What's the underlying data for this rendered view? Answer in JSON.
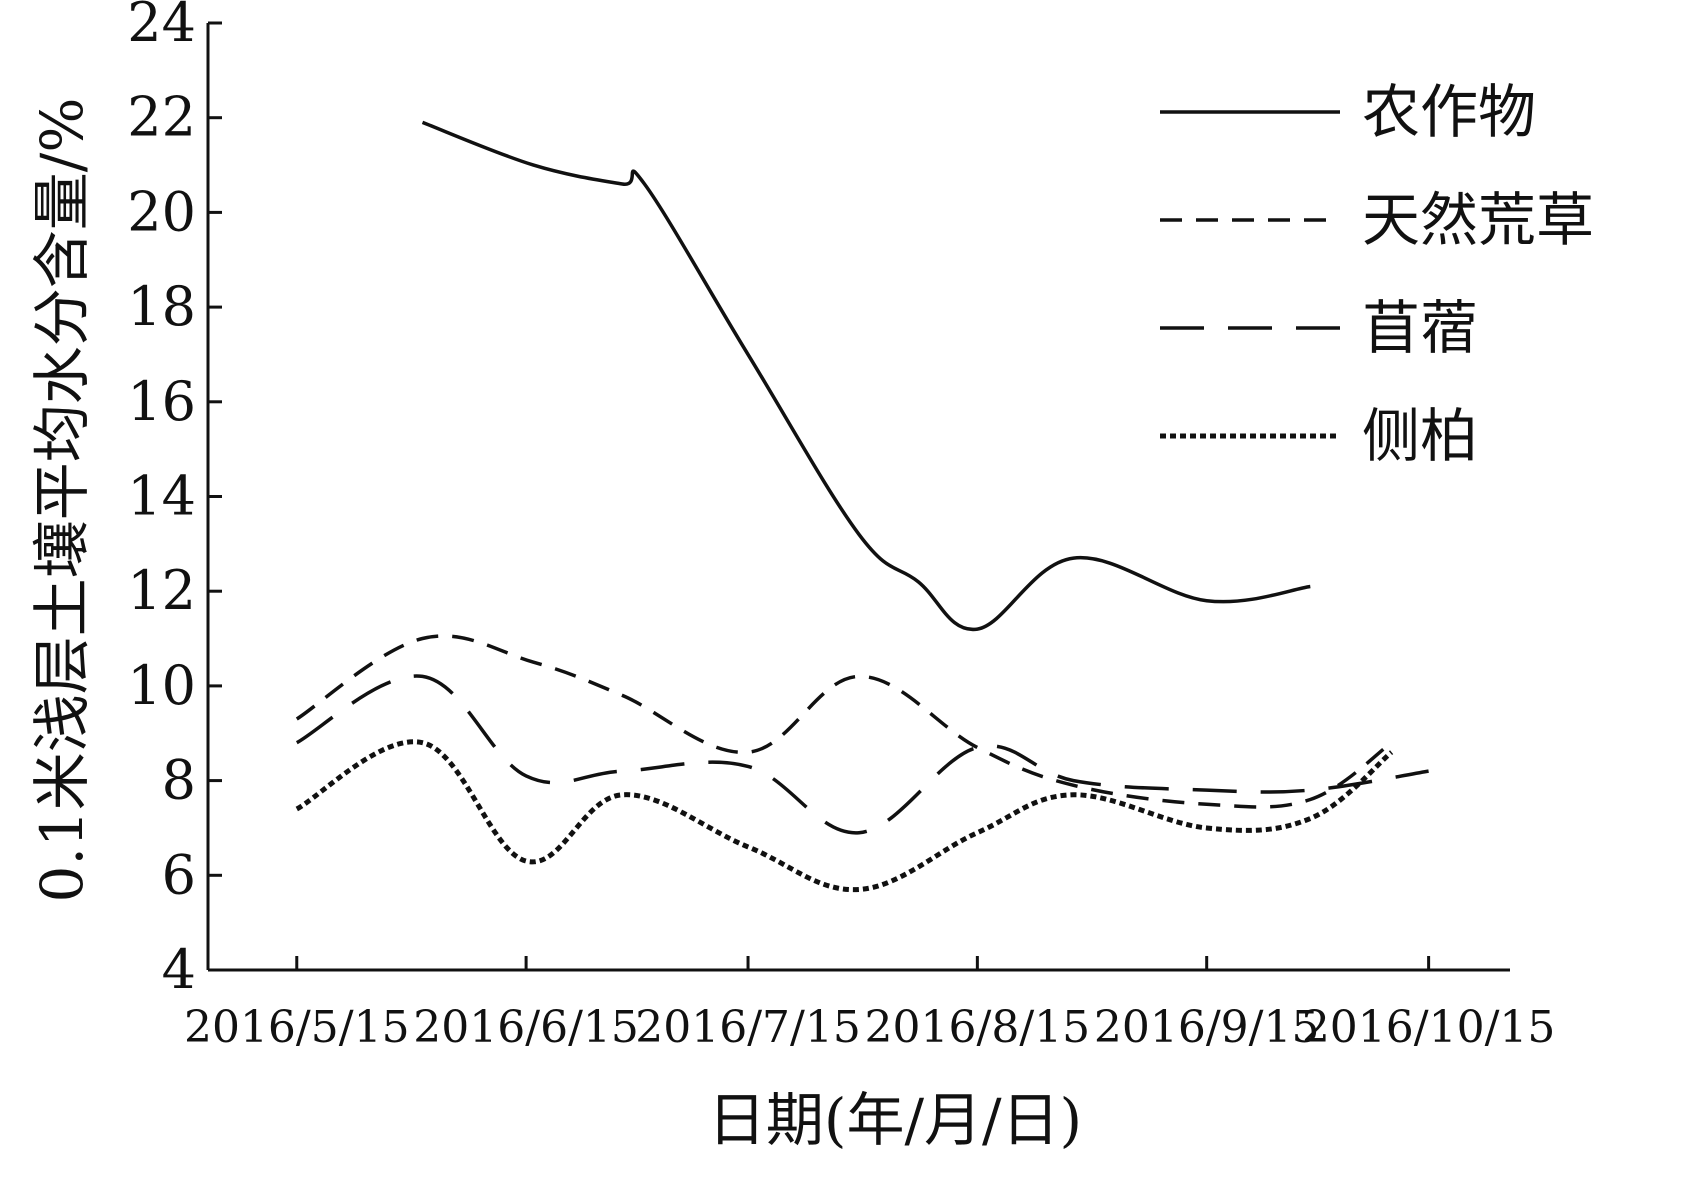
{
  "chart_data": {
    "type": "line",
    "title": "",
    "xlabel": "日期(年/月/日)",
    "ylabel": "0.1米浅层土壤平均水分含量/%",
    "ylim": [
      4,
      24
    ],
    "yticks": [
      "4",
      "6",
      "8",
      "10",
      "12",
      "14",
      "16",
      "18",
      "20",
      "22",
      "24"
    ],
    "xticks": [
      "2016/5/15",
      "2016/6/15",
      "2016/7/15",
      "2016/8/15",
      "2016/9/15",
      "2016/10/15"
    ],
    "xlim": [
      "2016-05-03",
      "2016-10-26"
    ],
    "grid": false,
    "legend_position": "top-right",
    "series": [
      {
        "name": "农作物",
        "dash": "solid",
        "x": [
          "2016-06-01",
          "2016-06-16",
          "2016-06-28",
          "2016-07-01",
          "2016-07-15",
          "2016-07-30",
          "2016-08-07",
          "2016-08-15",
          "2016-08-28",
          "2016-09-15",
          "2016-09-29"
        ],
        "y": [
          21.9,
          21.0,
          20.6,
          20.6,
          17.0,
          13.2,
          12.2,
          11.2,
          12.7,
          11.8,
          12.1
        ]
      },
      {
        "name": "天然荒草",
        "dash": "short",
        "x": [
          "2016-05-15",
          "2016-06-01",
          "2016-06-16",
          "2016-06-28",
          "2016-07-15",
          "2016-07-30",
          "2016-08-15",
          "2016-08-28",
          "2016-09-15",
          "2016-09-29",
          "2016-10-10"
        ],
        "y": [
          9.3,
          11.0,
          10.5,
          9.8,
          8.6,
          10.2,
          8.7,
          7.9,
          7.5,
          7.6,
          8.8
        ]
      },
      {
        "name": "苜蓿",
        "dash": "long",
        "x": [
          "2016-05-15",
          "2016-06-01",
          "2016-06-15",
          "2016-06-28",
          "2016-07-15",
          "2016-07-30",
          "2016-08-15",
          "2016-08-28",
          "2016-09-15",
          "2016-09-29",
          "2016-10-15"
        ],
        "y": [
          8.8,
          10.2,
          8.1,
          8.2,
          8.3,
          6.9,
          8.7,
          8.0,
          7.8,
          7.8,
          8.2
        ]
      },
      {
        "name": "侧柏",
        "dash": "dotted",
        "x": [
          "2016-05-15",
          "2016-06-01",
          "2016-06-15",
          "2016-06-28",
          "2016-07-15",
          "2016-07-30",
          "2016-08-15",
          "2016-08-28",
          "2016-09-15",
          "2016-09-29",
          "2016-10-10"
        ],
        "y": [
          7.4,
          8.8,
          6.3,
          7.7,
          6.6,
          5.7,
          6.9,
          7.7,
          7.0,
          7.2,
          8.6
        ]
      }
    ]
  }
}
